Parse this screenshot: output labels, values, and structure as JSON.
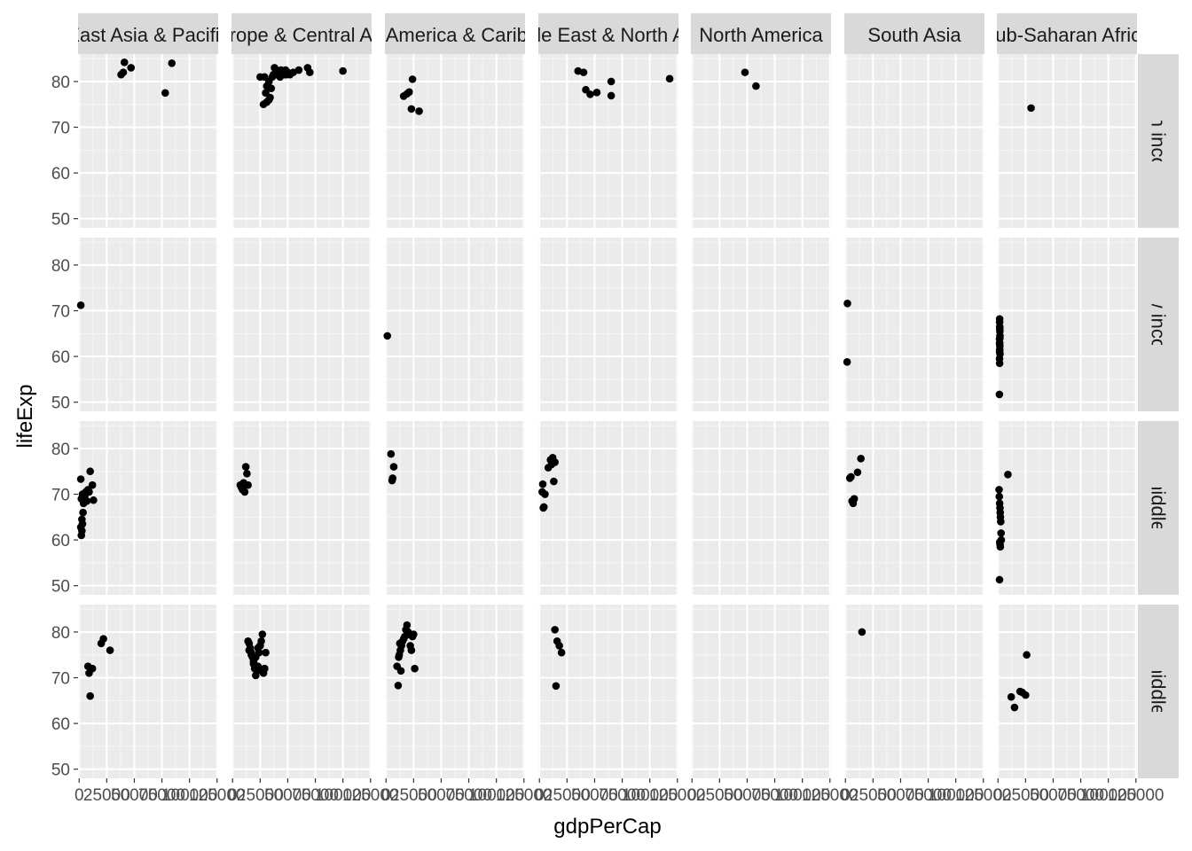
{
  "chart_data": {
    "type": "scatter",
    "facet": "grid",
    "xlabel": "gdpPerCap",
    "ylabel": "lifeExp",
    "xlim": [
      -1000,
      126000
    ],
    "ylim": [
      48,
      86
    ],
    "x_ticks": [
      0,
      25000,
      50000,
      75000,
      100000,
      125000
    ],
    "x_tick_labels": [
      "0",
      "25000",
      "50000",
      "75000",
      "100000",
      "125000"
    ],
    "y_ticks": [
      50,
      60,
      70,
      80
    ],
    "y_tick_labels": [
      "50",
      "60",
      "70",
      "80"
    ],
    "columns": [
      "East Asia & Pacific",
      "Europe & Central Asia",
      "Latin America & Caribbean",
      "Middle East & North Africa",
      "North America",
      "South Asia",
      "Sub-Saharan Africa"
    ],
    "rows": [
      "High income",
      "Low income",
      "Lower middle income",
      "Upper middle income"
    ],
    "grid": true,
    "panel_background": "#ebebeb",
    "strip_background": "#d9d9d9",
    "point_color": "#000000",
    "panels": [
      [
        {
          "x": [
            38000,
            40000,
            41000,
            47000,
            78000,
            84000
          ],
          "y": [
            81.5,
            82.0,
            84.2,
            83.0,
            77.5,
            84.0
          ]
        },
        {
          "x": [
            25000,
            28000,
            30000,
            31000,
            33000,
            33000,
            35000,
            37000,
            38000,
            39000,
            40000,
            42000,
            43000,
            44000,
            45000,
            46000,
            47000,
            48000,
            49000,
            50000,
            52000,
            55000,
            60000,
            68000,
            70000,
            100000,
            29000,
            31000,
            34000,
            36000
          ],
          "y": [
            81.0,
            75.0,
            77.5,
            75.5,
            80.0,
            76.0,
            78.5,
            81.5,
            83.0,
            81.5,
            82.5,
            81.5,
            81.0,
            82.5,
            81.5,
            82.0,
            81.5,
            82.5,
            81.5,
            82.0,
            81.5,
            82.0,
            82.5,
            83.0,
            82.0,
            82.3,
            81.0,
            79.0,
            76.5,
            81.0
          ],
          "note": ""
        },
        {
          "x": [
            16000,
            19000,
            21000,
            23000,
            24000,
            30000
          ],
          "y": [
            76.8,
            77.3,
            77.7,
            74.0,
            80.5,
            73.5
          ]
        },
        {
          "x": [
            35000,
            40000,
            42000,
            46000,
            52000,
            65000,
            65000,
            118000
          ],
          "y": [
            82.3,
            82.0,
            78.2,
            77.2,
            77.6,
            80.0,
            76.9,
            80.6
          ]
        },
        {
          "x": [
            48000,
            58000
          ],
          "y": [
            82.0,
            79.0
          ]
        },
        {
          "x": [],
          "y": []
        },
        {
          "x": [
            30000
          ],
          "y": [
            74.2
          ]
        }
      ],
      [
        {
          "x": [
            1500
          ],
          "y": [
            71.2
          ]
        },
        {
          "x": [],
          "y": []
        },
        {
          "x": [
            1200
          ],
          "y": [
            64.5
          ]
        },
        {
          "x": [],
          "y": []
        },
        {
          "x": [],
          "y": []
        },
        {
          "x": [
            1800,
            1500
          ],
          "y": [
            71.6,
            58.8
          ]
        },
        {
          "x": [
            1500,
            1500,
            1600,
            1700,
            1800,
            1400,
            1500,
            1700,
            1600,
            1500,
            1800,
            1400,
            1500,
            1600,
            1700,
            1500,
            1300
          ],
          "y": [
            68.2,
            67.5,
            66.5,
            65.5,
            64.5,
            63.8,
            63.0,
            62.3,
            61.5,
            61.0,
            60.5,
            59.5,
            58.5,
            66.0,
            64.0,
            62.8,
            51.7
          ]
        }
      ],
      [
        {
          "x": [
            1500,
            2000,
            2500,
            3000,
            3500,
            4000,
            5000,
            6000,
            8000,
            10000,
            12000,
            13000,
            2000,
            3000,
            4500,
            5500,
            7000,
            9000,
            1500,
            2500
          ],
          "y": [
            73.3,
            61.0,
            62.0,
            63.5,
            66.0,
            68.0,
            69.5,
            70.5,
            71.0,
            75.0,
            72.0,
            68.7,
            69.0,
            70.0,
            69.5,
            70.0,
            68.5,
            70.5,
            62.8,
            64.5
          ]
        },
        {
          "x": [
            7000,
            8000,
            9000,
            10000,
            11000,
            12000,
            13000,
            14000
          ],
          "y": [
            72.0,
            71.5,
            71.0,
            72.5,
            70.5,
            76.0,
            74.5,
            72.0
          ]
        },
        {
          "x": [
            4500,
            5500,
            6000,
            7000
          ],
          "y": [
            78.8,
            73.0,
            73.5,
            76.0
          ]
        },
        {
          "x": [
            3000,
            4000,
            5000,
            8000,
            10000,
            12000,
            13000,
            14000,
            11000,
            2500,
            3500
          ],
          "y": [
            72.2,
            67.2,
            70.0,
            75.8,
            77.5,
            78.0,
            72.8,
            77.0,
            76.5,
            70.5,
            67.0
          ]
        },
        {
          "x": [],
          "y": []
        },
        {
          "x": [
            4000,
            7000,
            8000,
            11000,
            14000,
            6000,
            5000
          ],
          "y": [
            73.5,
            68.0,
            69.0,
            74.8,
            77.8,
            68.5,
            73.8
          ]
        },
        {
          "x": [
            1000,
            1200,
            1500,
            1800,
            2000,
            2200,
            2500,
            2800,
            3000,
            1600,
            1900,
            2100,
            1400,
            9000
          ],
          "y": [
            71.0,
            69.5,
            68.0,
            67.0,
            66.0,
            65.0,
            64.0,
            61.5,
            60.0,
            59.5,
            59.0,
            58.5,
            51.3,
            74.3
          ]
        }
      ],
      [
        {
          "x": [
            8000,
            9000,
            10000,
            12000,
            20000,
            22000,
            28000
          ],
          "y": [
            72.5,
            71.0,
            66.0,
            72.0,
            77.5,
            78.5,
            76.0
          ]
        },
        {
          "x": [
            14000,
            15000,
            16000,
            17000,
            18000,
            19000,
            20000,
            21000,
            22000,
            23000,
            24000,
            25000,
            26000,
            27000,
            28000,
            29000,
            30000,
            15000,
            17000,
            19000,
            21000,
            23000,
            25000,
            27000,
            29000
          ],
          "y": [
            78.0,
            77.5,
            76.5,
            75.5,
            74.5,
            73.0,
            72.0,
            70.5,
            71.5,
            72.5,
            75.5,
            77.0,
            78.0,
            79.5,
            71.0,
            72.0,
            75.5,
            76.0,
            75.0,
            73.5,
            74.5,
            76.5,
            77.0,
            71.5,
            72.0
          ]
        },
        {
          "x": [
            10000,
            11000,
            12000,
            13000,
            14000,
            15000,
            16000,
            17000,
            18000,
            19000,
            20000,
            21000,
            22000,
            23000,
            24000,
            25000,
            26000,
            11500,
            12500,
            13500
          ],
          "y": [
            72.5,
            68.3,
            75.0,
            76.0,
            77.0,
            78.0,
            78.5,
            79.0,
            80.5,
            81.5,
            80.0,
            79.5,
            77.0,
            76.0,
            79.0,
            79.5,
            72.0,
            74.5,
            77.5,
            71.5
          ]
        },
        {
          "x": [
            14000,
            16000,
            18000,
            20000,
            15000
          ],
          "y": [
            80.5,
            78.0,
            77.0,
            75.5,
            68.2
          ]
        },
        {
          "x": [],
          "y": []
        },
        {
          "x": [
            15000
          ],
          "y": [
            80.0
          ]
        },
        {
          "x": [
            12000,
            15000,
            20000,
            22000,
            25000,
            26000
          ],
          "y": [
            65.8,
            63.5,
            67.0,
            66.8,
            66.2,
            75.0
          ]
        }
      ]
    ]
  }
}
